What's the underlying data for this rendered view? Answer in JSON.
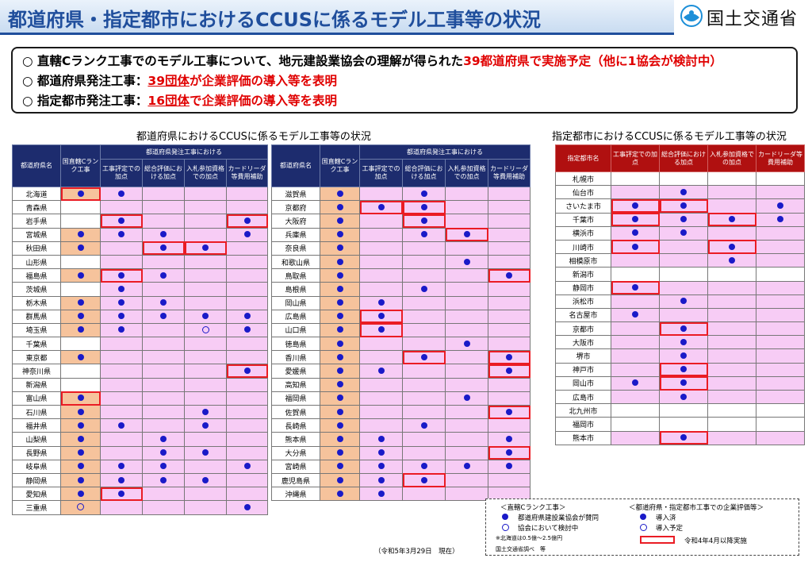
{
  "header": {
    "title": "都道府県・指定都市におけるCCUSに係るモデル工事等の状況",
    "ministry": "国土交通省"
  },
  "summary": {
    "l1_a": "○ 直轄Cランク工事でのモデル工事について、地元建設業協会の理解が得られた",
    "l1_b": "39都道府県で実施予定",
    "l1_c": "（他に1協会が検討中）",
    "l2_a": "○ 都道府県発注工事：",
    "l2_b": "39団体",
    "l2_c": "が企業評価の導入等を表明",
    "l3_a": "○ 指定都市発注工事：",
    "l3_b": "16団体",
    "l3_c": "で企業評価の導入等を表明"
  },
  "pref_title": "都道府県におけるCCUSに係るモデル工事等の状況",
  "city_title": "指定都市におけるCCUSに係るモデル工事等の状況",
  "pref_headers": {
    "name": "都道府県名",
    "direct": "国直轄Cランク工事",
    "group": "都道府県発注工事における",
    "c1": "工事評定での加点",
    "c2": "総合評価における加点",
    "c3": "入札参加資格での加点",
    "c4": "カードリーダ等費用補助"
  },
  "city_headers": {
    "name": "指定都市名",
    "c1": "工事評定での加点",
    "c2": "総合評価における加点",
    "c3": "入札参加資格での加点",
    "c4": "カードリーダ等費用補助"
  },
  "prefs_left": [
    {
      "name": "北海道",
      "cells": [
        "d",
        "d",
        "",
        "",
        ""
      ],
      "hl": [
        true,
        false,
        false,
        false,
        false
      ],
      "bg": "o"
    },
    {
      "name": "青森県",
      "cells": [
        "",
        "",
        "",
        "",
        ""
      ],
      "hl": [
        false,
        false,
        false,
        false,
        false
      ],
      "bg": "w"
    },
    {
      "name": "岩手県",
      "cells": [
        "",
        "d",
        "",
        "",
        "d"
      ],
      "hl": [
        false,
        true,
        false,
        false,
        true
      ],
      "bg": "w"
    },
    {
      "name": "宮城県",
      "cells": [
        "d",
        "d",
        "d",
        "",
        "d"
      ],
      "hl": [
        false,
        false,
        false,
        false,
        false
      ],
      "bg": "o"
    },
    {
      "name": "秋田県",
      "cells": [
        "d",
        "",
        "d",
        "d",
        ""
      ],
      "hl": [
        false,
        false,
        true,
        true,
        false
      ],
      "bg": "o"
    },
    {
      "name": "山形県",
      "cells": [
        "",
        "",
        "",
        "",
        ""
      ],
      "hl": [
        false,
        false,
        false,
        false,
        false
      ],
      "bg": "w"
    },
    {
      "name": "福島県",
      "cells": [
        "d",
        "d",
        "d",
        "",
        ""
      ],
      "hl": [
        false,
        true,
        false,
        false,
        false
      ],
      "bg": "o"
    },
    {
      "name": "茨城県",
      "cells": [
        "",
        "d",
        "",
        "",
        ""
      ],
      "hl": [
        false,
        false,
        false,
        false,
        false
      ],
      "bg": "w"
    },
    {
      "name": "栃木県",
      "cells": [
        "d",
        "d",
        "d",
        "",
        ""
      ],
      "hl": [
        false,
        false,
        false,
        false,
        false
      ],
      "bg": "o"
    },
    {
      "name": "群馬県",
      "cells": [
        "d",
        "d",
        "d",
        "d",
        "d"
      ],
      "hl": [
        false,
        false,
        false,
        false,
        false
      ],
      "bg": "o"
    },
    {
      "name": "埼玉県",
      "cells": [
        "d",
        "d",
        "",
        "r",
        "d"
      ],
      "hl": [
        false,
        false,
        false,
        false,
        false
      ],
      "bg": "o"
    },
    {
      "name": "千葉県",
      "cells": [
        "",
        "",
        "",
        "",
        ""
      ],
      "hl": [
        false,
        false,
        false,
        false,
        false
      ],
      "bg": "w"
    },
    {
      "name": "東京都",
      "cells": [
        "d",
        "",
        "",
        "",
        ""
      ],
      "hl": [
        false,
        false,
        false,
        false,
        false
      ],
      "bg": "o"
    },
    {
      "name": "神奈川県",
      "cells": [
        "",
        "",
        "",
        "",
        "d"
      ],
      "hl": [
        false,
        false,
        false,
        false,
        true
      ],
      "bg": "w"
    },
    {
      "name": "新潟県",
      "cells": [
        "",
        "",
        "",
        "",
        ""
      ],
      "hl": [
        false,
        false,
        false,
        false,
        false
      ],
      "bg": "w"
    },
    {
      "name": "富山県",
      "cells": [
        "d",
        "",
        "",
        "",
        ""
      ],
      "hl": [
        true,
        false,
        false,
        false,
        false
      ],
      "bg": "o"
    },
    {
      "name": "石川県",
      "cells": [
        "d",
        "",
        "",
        "d",
        ""
      ],
      "hl": [
        false,
        false,
        false,
        false,
        false
      ],
      "bg": "o"
    },
    {
      "name": "福井県",
      "cells": [
        "d",
        "d",
        "",
        "d",
        ""
      ],
      "hl": [
        false,
        false,
        false,
        false,
        false
      ],
      "bg": "o"
    },
    {
      "name": "山梨県",
      "cells": [
        "d",
        "",
        "d",
        "",
        ""
      ],
      "hl": [
        false,
        false,
        false,
        false,
        false
      ],
      "bg": "o"
    },
    {
      "name": "長野県",
      "cells": [
        "d",
        "",
        "d",
        "d",
        ""
      ],
      "hl": [
        false,
        false,
        false,
        false,
        false
      ],
      "bg": "o"
    },
    {
      "name": "岐阜県",
      "cells": [
        "d",
        "d",
        "d",
        "",
        "d"
      ],
      "hl": [
        false,
        false,
        false,
        false,
        false
      ],
      "bg": "o"
    },
    {
      "name": "静岡県",
      "cells": [
        "d",
        "d",
        "d",
        "d",
        ""
      ],
      "hl": [
        false,
        false,
        false,
        false,
        false
      ],
      "bg": "o"
    },
    {
      "name": "愛知県",
      "cells": [
        "d",
        "d",
        "",
        "",
        ""
      ],
      "hl": [
        false,
        true,
        false,
        false,
        false
      ],
      "bg": "o"
    },
    {
      "name": "三重県",
      "cells": [
        "r",
        "",
        "",
        "",
        "d"
      ],
      "hl": [
        false,
        false,
        false,
        false,
        false
      ],
      "bg": "o"
    }
  ],
  "prefs_right": [
    {
      "name": "滋賀県",
      "cells": [
        "d",
        "",
        "d",
        "",
        ""
      ],
      "hl": [
        false,
        false,
        false,
        false,
        false
      ],
      "bg": "o"
    },
    {
      "name": "京都府",
      "cells": [
        "d",
        "d",
        "d",
        "",
        ""
      ],
      "hl": [
        false,
        true,
        true,
        false,
        false
      ],
      "bg": "o"
    },
    {
      "name": "大阪府",
      "cells": [
        "d",
        "",
        "d",
        "",
        ""
      ],
      "hl": [
        false,
        false,
        true,
        false,
        false
      ],
      "bg": "o"
    },
    {
      "name": "兵庫県",
      "cells": [
        "d",
        "",
        "d",
        "d",
        ""
      ],
      "hl": [
        false,
        false,
        false,
        true,
        false
      ],
      "bg": "o"
    },
    {
      "name": "奈良県",
      "cells": [
        "d",
        "",
        "",
        "",
        ""
      ],
      "hl": [
        false,
        false,
        false,
        false,
        false
      ],
      "bg": "o"
    },
    {
      "name": "和歌山県",
      "cells": [
        "d",
        "",
        "",
        "d",
        ""
      ],
      "hl": [
        false,
        false,
        false,
        false,
        false
      ],
      "bg": "o"
    },
    {
      "name": "鳥取県",
      "cells": [
        "d",
        "",
        "",
        "",
        "d"
      ],
      "hl": [
        false,
        false,
        false,
        false,
        true
      ],
      "bg": "o"
    },
    {
      "name": "島根県",
      "cells": [
        "d",
        "",
        "d",
        "",
        ""
      ],
      "hl": [
        false,
        false,
        false,
        false,
        false
      ],
      "bg": "o"
    },
    {
      "name": "岡山県",
      "cells": [
        "d",
        "d",
        "",
        "",
        ""
      ],
      "hl": [
        false,
        false,
        false,
        false,
        false
      ],
      "bg": "o"
    },
    {
      "name": "広島県",
      "cells": [
        "d",
        "d",
        "",
        "",
        ""
      ],
      "hl": [
        false,
        true,
        false,
        false,
        false
      ],
      "bg": "o"
    },
    {
      "name": "山口県",
      "cells": [
        "d",
        "d",
        "",
        "",
        ""
      ],
      "hl": [
        false,
        true,
        false,
        false,
        false
      ],
      "bg": "o"
    },
    {
      "name": "徳島県",
      "cells": [
        "d",
        "",
        "",
        "d",
        ""
      ],
      "hl": [
        false,
        false,
        false,
        false,
        false
      ],
      "bg": "o"
    },
    {
      "name": "香川県",
      "cells": [
        "d",
        "",
        "d",
        "",
        "d"
      ],
      "hl": [
        false,
        false,
        true,
        false,
        true
      ],
      "bg": "o"
    },
    {
      "name": "愛媛県",
      "cells": [
        "d",
        "d",
        "",
        "",
        "d"
      ],
      "hl": [
        false,
        false,
        false,
        false,
        true
      ],
      "bg": "o"
    },
    {
      "name": "高知県",
      "cells": [
        "d",
        "",
        "",
        "",
        ""
      ],
      "hl": [
        false,
        false,
        false,
        false,
        false
      ],
      "bg": "o"
    },
    {
      "name": "福岡県",
      "cells": [
        "d",
        "",
        "",
        "d",
        ""
      ],
      "hl": [
        false,
        false,
        false,
        false,
        false
      ],
      "bg": "o"
    },
    {
      "name": "佐賀県",
      "cells": [
        "d",
        "",
        "",
        "",
        "d"
      ],
      "hl": [
        false,
        false,
        false,
        false,
        true
      ],
      "bg": "o"
    },
    {
      "name": "長崎県",
      "cells": [
        "d",
        "",
        "d",
        "",
        ""
      ],
      "hl": [
        false,
        false,
        false,
        false,
        false
      ],
      "bg": "o"
    },
    {
      "name": "熊本県",
      "cells": [
        "d",
        "d",
        "",
        "",
        "d"
      ],
      "hl": [
        false,
        false,
        false,
        false,
        false
      ],
      "bg": "o"
    },
    {
      "name": "大分県",
      "cells": [
        "d",
        "d",
        "",
        "",
        "d"
      ],
      "hl": [
        false,
        false,
        false,
        false,
        true
      ],
      "bg": "o"
    },
    {
      "name": "宮崎県",
      "cells": [
        "d",
        "d",
        "d",
        "d",
        "d"
      ],
      "hl": [
        false,
        false,
        false,
        false,
        false
      ],
      "bg": "o"
    },
    {
      "name": "鹿児島県",
      "cells": [
        "d",
        "d",
        "d",
        "",
        ""
      ],
      "hl": [
        false,
        false,
        true,
        false,
        false
      ],
      "bg": "o"
    },
    {
      "name": "沖縄県",
      "cells": [
        "d",
        "d",
        "",
        "",
        ""
      ],
      "hl": [
        false,
        false,
        false,
        false,
        false
      ],
      "bg": "o"
    }
  ],
  "cities": [
    {
      "name": "札幌市",
      "cells": [
        "",
        "",
        "",
        ""
      ],
      "hl": [
        false,
        false,
        false,
        false
      ],
      "bg": "w"
    },
    {
      "name": "仙台市",
      "cells": [
        "",
        "d",
        "",
        ""
      ],
      "hl": [
        false,
        false,
        false,
        false
      ],
      "bg": "p"
    },
    {
      "name": "さいたま市",
      "cells": [
        "d",
        "d",
        "",
        "d"
      ],
      "hl": [
        true,
        true,
        false,
        false
      ],
      "bg": "p"
    },
    {
      "name": "千葉市",
      "cells": [
        "d",
        "d",
        "d",
        "d"
      ],
      "hl": [
        true,
        false,
        true,
        false
      ],
      "bg": "p"
    },
    {
      "name": "横浜市",
      "cells": [
        "d",
        "d",
        "",
        ""
      ],
      "hl": [
        false,
        false,
        false,
        false
      ],
      "bg": "p"
    },
    {
      "name": "川崎市",
      "cells": [
        "d",
        "",
        "d",
        ""
      ],
      "hl": [
        true,
        false,
        true,
        false
      ],
      "bg": "p"
    },
    {
      "name": "相模原市",
      "cells": [
        "",
        "",
        "d",
        ""
      ],
      "hl": [
        false,
        false,
        false,
        false
      ],
      "bg": "p"
    },
    {
      "name": "新潟市",
      "cells": [
        "",
        "",
        "",
        ""
      ],
      "hl": [
        false,
        false,
        false,
        false
      ],
      "bg": "w"
    },
    {
      "name": "静岡市",
      "cells": [
        "d",
        "",
        "",
        ""
      ],
      "hl": [
        true,
        false,
        false,
        false
      ],
      "bg": "p"
    },
    {
      "name": "浜松市",
      "cells": [
        "",
        "d",
        "",
        ""
      ],
      "hl": [
        false,
        false,
        false,
        false
      ],
      "bg": "p"
    },
    {
      "name": "名古屋市",
      "cells": [
        "d",
        "",
        "",
        ""
      ],
      "hl": [
        false,
        false,
        false,
        false
      ],
      "bg": "p"
    },
    {
      "name": "京都市",
      "cells": [
        "",
        "d",
        "",
        ""
      ],
      "hl": [
        false,
        true,
        false,
        false
      ],
      "bg": "p"
    },
    {
      "name": "大阪市",
      "cells": [
        "",
        "d",
        "",
        ""
      ],
      "hl": [
        false,
        false,
        false,
        false
      ],
      "bg": "p"
    },
    {
      "name": "堺市",
      "cells": [
        "",
        "d",
        "",
        ""
      ],
      "hl": [
        false,
        false,
        false,
        false
      ],
      "bg": "p"
    },
    {
      "name": "神戸市",
      "cells": [
        "",
        "d",
        "",
        ""
      ],
      "hl": [
        false,
        true,
        false,
        false
      ],
      "bg": "p"
    },
    {
      "name": "岡山市",
      "cells": [
        "d",
        "d",
        "",
        ""
      ],
      "hl": [
        false,
        true,
        false,
        false
      ],
      "bg": "p"
    },
    {
      "name": "広島市",
      "cells": [
        "",
        "d",
        "",
        ""
      ],
      "hl": [
        false,
        false,
        false,
        false
      ],
      "bg": "p"
    },
    {
      "name": "北九州市",
      "cells": [
        "",
        "",
        "",
        ""
      ],
      "hl": [
        false,
        false,
        false,
        false
      ],
      "bg": "w"
    },
    {
      "name": "福岡市",
      "cells": [
        "",
        "",
        "",
        ""
      ],
      "hl": [
        false,
        false,
        false,
        false
      ],
      "bg": "w"
    },
    {
      "name": "熊本市",
      "cells": [
        "",
        "d",
        "",
        ""
      ],
      "hl": [
        false,
        true,
        false,
        false
      ],
      "bg": "p"
    }
  ],
  "legend": {
    "direct_title": "＜直轄Cランク工事＞",
    "direct_dot": "都道府県建設業協会が賛同",
    "direct_ring": "協会において検討中",
    "note1": "※北海道は0.5億～2.5億円",
    "note2": "国土交通省調べ　等",
    "eval_title": "＜都道府県・指定都市工事での企業評価等＞",
    "eval_dot": "導入済",
    "eval_ring": "導入予定",
    "eval_rect": "令和4年4月以降実施"
  },
  "asof": "（令和5年3月29日　現在）"
}
